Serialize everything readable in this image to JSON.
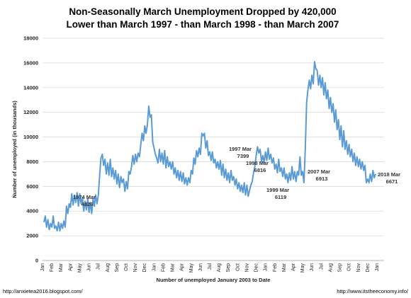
{
  "chart_data": {
    "type": "line",
    "title": "Non-Seasonally March Unemployment Dropped by 420,000",
    "subtitle": "Lower than March 1997 -  than March 1998 - than March 2007",
    "xlabel": "Number of unemployed January 2003 to Date",
    "ylabel": "Number of unemployed (in thousands)",
    "ylim": [
      0,
      18000
    ],
    "yticks": [
      0,
      2000,
      4000,
      6000,
      8000,
      10000,
      12000,
      14000,
      16000,
      18000
    ],
    "yticklabels": [
      "0",
      "2000",
      "4000",
      "6000",
      "8000",
      "10000",
      "12000",
      "14000",
      "16000",
      "18000"
    ],
    "xtick_labels": [
      "Jan",
      "Feb",
      "Mar",
      "Apr",
      "May",
      "Jun",
      "Jul",
      "Aug",
      "Sep",
      "Oct",
      "Nov",
      "Dec",
      "Jan",
      "Feb",
      "Mar",
      "Apr",
      "May",
      "Jun",
      "Jul",
      "Aug",
      "Sep",
      "Oct",
      "Nov",
      "Dec",
      "Jan",
      "Feb",
      "Mar",
      "Apr",
      "May",
      "Jun",
      "Jul",
      "Aug",
      "Sep",
      "Oct",
      "Nov",
      "Dec",
      "Jan"
    ],
    "grid": "horizontal",
    "series": [
      {
        "color": "#5b9bd5",
        "values": [
          3100,
          3600,
          2700,
          3300,
          2500,
          3000,
          2700,
          3600,
          2600,
          2800,
          2400,
          3100,
          2400,
          3000,
          2600,
          3200,
          2700,
          4400,
          3800,
          4600,
          4300,
          5400,
          4500,
          5300,
          4700,
          5500,
          4400,
          5400,
          4600,
          5100,
          4000,
          4800,
          4100,
          5000,
          3900,
          4700,
          3800,
          5000,
          4400,
          5300,
          4600,
          5300,
          6900,
          8300,
          8600,
          7700,
          8200,
          7000,
          7900,
          6900,
          8200,
          6800,
          7500,
          6600,
          7300,
          6200,
          7000,
          5900,
          6800,
          6300,
          6600,
          5600,
          6400,
          5800,
          7200,
          7000,
          7600,
          8500,
          7800,
          8600,
          8000,
          8700,
          8400,
          9400,
          10300,
          9700,
          10900,
          10300,
          11000,
          12500,
          11600,
          11800,
          9600,
          9100,
          8600,
          8300,
          7900,
          9000,
          8000,
          8700,
          7800,
          8900,
          7500,
          8400,
          7600,
          8000,
          7400,
          8000,
          7000,
          7500,
          6700,
          7300,
          6500,
          7200,
          6400,
          7100,
          6200,
          6700,
          6100,
          6700,
          6300,
          7300,
          7000,
          8300,
          7800,
          8900,
          8400,
          9100,
          8600,
          10300,
          10100,
          10300,
          9100,
          9700,
          8500,
          8800,
          8100,
          8800,
          7900,
          8200,
          7500,
          8000,
          7400,
          8100,
          6900,
          7800,
          6700,
          7400,
          6500,
          7100,
          6300,
          7300,
          6500,
          6800,
          6100,
          6600,
          5800,
          6300,
          5600,
          6100,
          5500,
          6300,
          5300,
          6100,
          5200,
          5700,
          6100,
          6400,
          7100,
          7600,
          8500,
          9200,
          8700,
          9000,
          8000,
          8500,
          7900,
          8800,
          8100,
          9100,
          8200,
          8600,
          7900,
          8300,
          7400,
          7800,
          7100,
          8200,
          7200,
          7500,
          6800,
          7500,
          6600,
          7000,
          6300,
          7100,
          6500,
          7600,
          6600,
          7200,
          6400,
          7200,
          6900,
          8400,
          6900,
          7200,
          6300,
          9000,
          12800,
          13800,
          14600,
          13900,
          15000,
          14300,
          16100,
          15500,
          15400,
          14200,
          15000,
          14000,
          14800,
          13400,
          14400,
          13100,
          13800,
          12300,
          13200,
          12000,
          12700,
          11200,
          12200,
          10600,
          11400,
          9800,
          10900,
          9200,
          10500,
          9000,
          9700,
          8600,
          9400,
          8400,
          9000,
          8000,
          8700,
          7700,
          8400,
          7600,
          8200,
          7400,
          8000,
          7300,
          7700,
          6300,
          6600,
          6300,
          7000,
          6400,
          7300,
          6700,
          7000
        ]
      }
    ],
    "annotations": [
      {
        "text": "1974 Mar",
        "value": "4826"
      },
      {
        "text": "1997 Mar",
        "value": "7399"
      },
      {
        "text": "1998 Mar",
        "value": "6816"
      },
      {
        "text": "1999 Mar",
        "value": "6119"
      },
      {
        "text": "2007 Mar",
        "value": "6913"
      },
      {
        "text": "2018 Mar",
        "value": "6671"
      }
    ]
  },
  "footer": {
    "left": "http://anxietea2016.blogspot.com/",
    "right": "http://www.itstheeconomy.info/"
  }
}
